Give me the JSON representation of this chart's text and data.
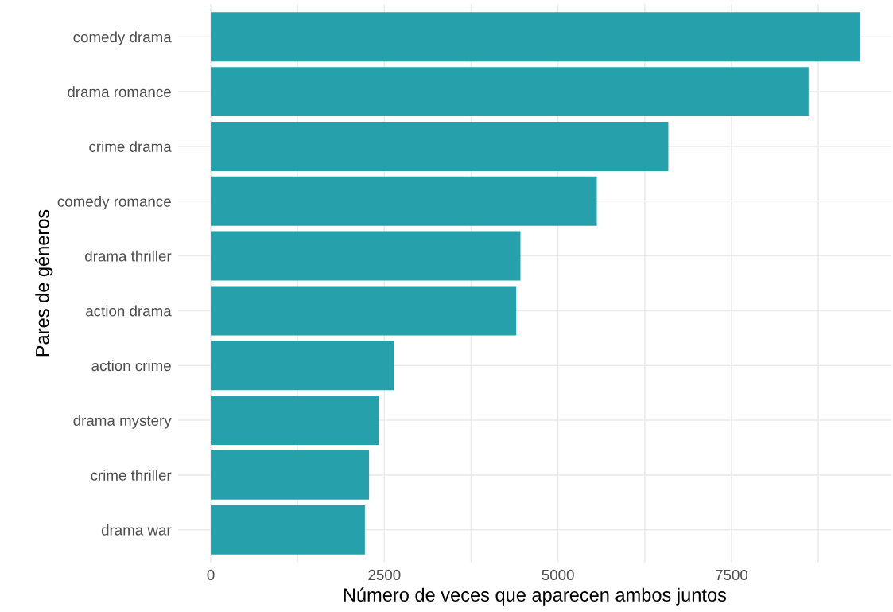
{
  "chart_data": {
    "type": "bar",
    "orientation": "horizontal",
    "xlabel": "Número de veces que aparecen ambos juntos",
    "ylabel": "Pares de géneros",
    "categories": [
      "comedy drama",
      "drama romance",
      "crime drama",
      "comedy romance",
      "drama thriller",
      "action drama",
      "action crime",
      "drama mystery",
      "crime thriller",
      "drama war"
    ],
    "values": [
      9350,
      8610,
      6590,
      5560,
      4460,
      4400,
      2640,
      2420,
      2280,
      2220
    ],
    "color": "#26a0ab",
    "xlim": [
      -470,
      9800
    ],
    "xticks": [
      0,
      {
        "value": 1250,
        "label": null
      },
      2500,
      {
        "value": 3750,
        "label": null
      },
      5000,
      {
        "value": 6250,
        "label": null
      },
      7500,
      {
        "value": 8750,
        "label": null
      }
    ],
    "grid": true
  }
}
